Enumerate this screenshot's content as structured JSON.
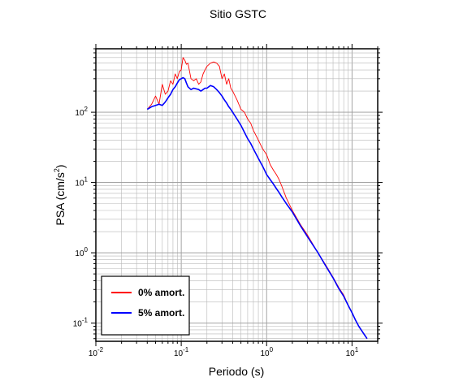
{
  "chart_data": {
    "type": "line",
    "title": "Sitio GSTC",
    "xlabel": "Periodo (s)",
    "ylabel_main": "PSA (cm/s",
    "ylabel_sup": "2",
    "ylabel_end": ")",
    "xscale": "log",
    "yscale": "log",
    "xlim": [
      0.01,
      20
    ],
    "ylim": [
      0.055,
      800
    ],
    "grid": true,
    "legend_position": "bottom-left",
    "x_ticks": [
      {
        "value": 0.01,
        "base": "10",
        "exp": "-2"
      },
      {
        "value": 0.1,
        "base": "10",
        "exp": "-1"
      },
      {
        "value": 1,
        "base": "10",
        "exp": "0"
      },
      {
        "value": 10,
        "base": "10",
        "exp": "1"
      }
    ],
    "y_ticks": [
      {
        "value": 0.1,
        "base": "10",
        "exp": "-1"
      },
      {
        "value": 1,
        "base": "10",
        "exp": "0"
      },
      {
        "value": 10,
        "base": "10",
        "exp": "1"
      },
      {
        "value": 100,
        "base": "10",
        "exp": "2"
      }
    ],
    "series": [
      {
        "name": "0% amort.",
        "color": "#ff0000",
        "x": [
          0.04,
          0.045,
          0.05,
          0.055,
          0.06,
          0.065,
          0.07,
          0.075,
          0.08,
          0.085,
          0.09,
          0.095,
          0.1,
          0.105,
          0.11,
          0.115,
          0.12,
          0.13,
          0.14,
          0.15,
          0.16,
          0.17,
          0.18,
          0.19,
          0.2,
          0.22,
          0.24,
          0.26,
          0.28,
          0.3,
          0.32,
          0.34,
          0.36,
          0.38,
          0.4,
          0.45,
          0.5,
          0.55,
          0.6,
          0.65,
          0.7,
          0.8,
          0.9,
          1.0,
          1.1,
          1.2,
          1.3,
          1.4,
          1.5,
          1.7,
          2.0,
          2.5,
          3.0,
          4.0,
          5.0,
          6.0,
          7.0,
          8.0,
          9.0,
          10.0,
          11.0,
          12.0,
          13.0,
          14.0,
          15.0
        ],
        "y": [
          110,
          130,
          170,
          130,
          250,
          180,
          200,
          280,
          250,
          350,
          300,
          380,
          400,
          600,
          550,
          480,
          500,
          300,
          280,
          300,
          250,
          270,
          350,
          400,
          450,
          500,
          520,
          500,
          450,
          300,
          350,
          250,
          300,
          220,
          200,
          150,
          110,
          100,
          80,
          70,
          55,
          40,
          30,
          25,
          18,
          15,
          13,
          11,
          9,
          6,
          4,
          2.5,
          1.8,
          1.0,
          0.65,
          0.45,
          0.32,
          0.25,
          0.18,
          0.14,
          0.11,
          0.09,
          0.078,
          0.068,
          0.06
        ]
      },
      {
        "name": "5% amort.",
        "color": "#0000ff",
        "x": [
          0.04,
          0.045,
          0.05,
          0.055,
          0.06,
          0.065,
          0.07,
          0.075,
          0.08,
          0.085,
          0.09,
          0.095,
          0.1,
          0.105,
          0.11,
          0.115,
          0.12,
          0.13,
          0.14,
          0.15,
          0.16,
          0.17,
          0.18,
          0.19,
          0.2,
          0.22,
          0.24,
          0.26,
          0.28,
          0.3,
          0.32,
          0.34,
          0.36,
          0.38,
          0.4,
          0.45,
          0.5,
          0.55,
          0.6,
          0.65,
          0.7,
          0.8,
          0.9,
          1.0,
          1.1,
          1.2,
          1.3,
          1.4,
          1.5,
          1.7,
          2.0,
          2.5,
          3.0,
          4.0,
          5.0,
          6.0,
          7.0,
          8.0,
          9.0,
          10.0,
          11.0,
          12.0,
          13.0,
          14.0,
          15.0
        ],
        "y": [
          110,
          120,
          125,
          130,
          125,
          140,
          160,
          180,
          210,
          230,
          260,
          290,
          300,
          310,
          300,
          260,
          230,
          210,
          220,
          215,
          210,
          200,
          210,
          220,
          220,
          240,
          230,
          210,
          190,
          170,
          150,
          135,
          120,
          110,
          100,
          80,
          65,
          52,
          42,
          36,
          30,
          22,
          17,
          13,
          11,
          9.5,
          8.2,
          7.2,
          6.3,
          5,
          3.8,
          2.4,
          1.7,
          1.0,
          0.63,
          0.44,
          0.31,
          0.24,
          0.18,
          0.14,
          0.11,
          0.09,
          0.078,
          0.068,
          0.06
        ]
      }
    ]
  }
}
